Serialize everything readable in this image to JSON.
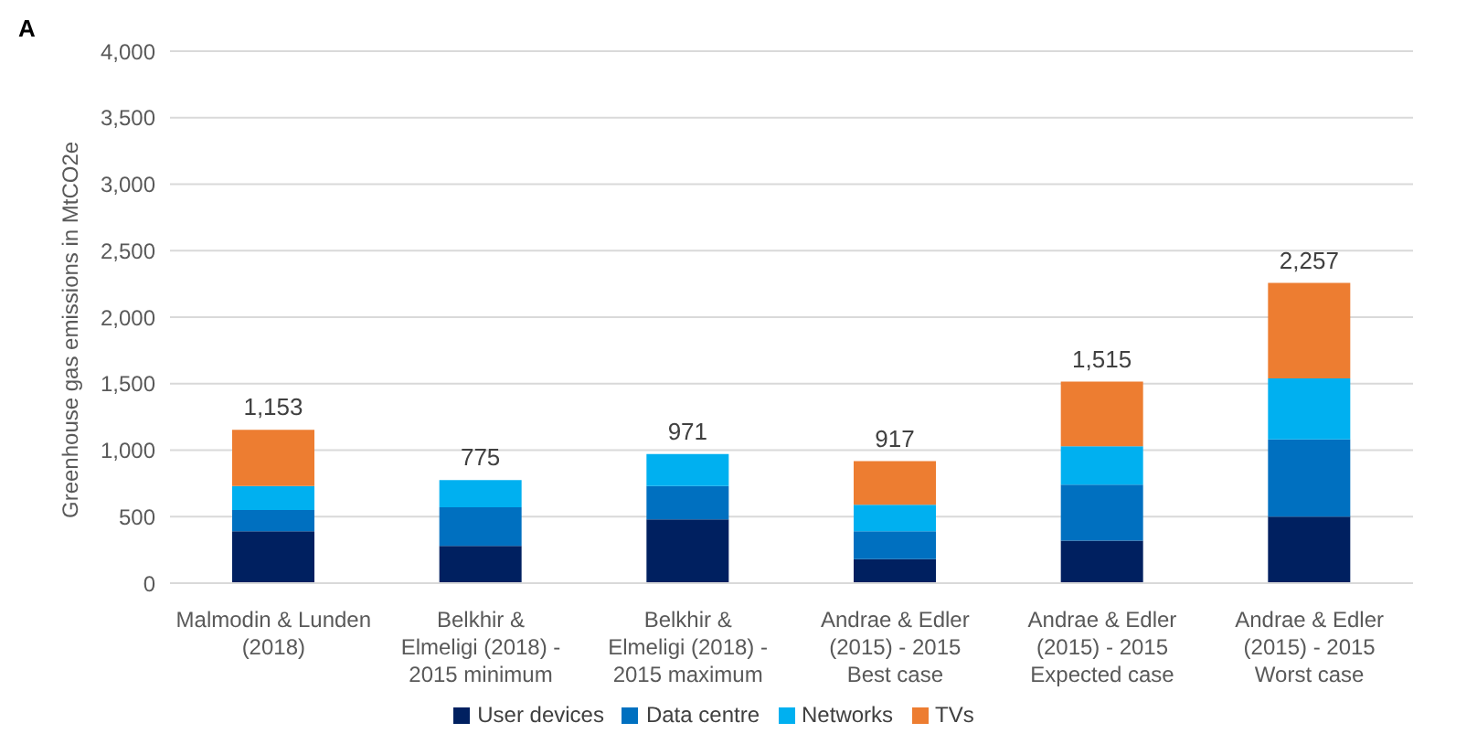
{
  "chart_data": {
    "type": "bar",
    "title": "A",
    "ylabel": "Greenhouse gas emissions in MtCO2e",
    "categories": [
      "Malmodin & Lunden (2018)",
      "Belkhir & Elmeligi (2018) - 2015 minimum",
      "Belkhir & Elmeligi (2018) - 2015 maximum",
      "Andrae & Edler (2015) - 2015 Best case",
      "Andrae & Edler (2015) - 2015 Expected case",
      "Andrae & Edler (2015) - 2015 Worst case"
    ],
    "series": [
      {
        "name": "User devices",
        "color": "#002060",
        "values": [
          390,
          280,
          480,
          180,
          320,
          500
        ]
      },
      {
        "name": "Data centre",
        "color": "#0070c0",
        "values": [
          160,
          290,
          250,
          210,
          420,
          580
        ]
      },
      {
        "name": "Networks",
        "color": "#00b0f0",
        "values": [
          180,
          205,
          240,
          200,
          290,
          460
        ]
      },
      {
        "name": "TVs",
        "color": "#ed7d31",
        "values": [
          423,
          0,
          0,
          327,
          485,
          717
        ]
      }
    ],
    "stacked": true,
    "totals": [
      "1,153",
      "775",
      "971",
      "917",
      "1,515",
      "2,257"
    ],
    "ylim": [
      0,
      4000
    ],
    "yticks": [
      {
        "value": 0,
        "label": "0"
      },
      {
        "value": 500,
        "label": "500"
      },
      {
        "value": 1000,
        "label": "1,000"
      },
      {
        "value": 1500,
        "label": "1,500"
      },
      {
        "value": 2000,
        "label": "2,000"
      },
      {
        "value": 2500,
        "label": "2,500"
      },
      {
        "value": 3000,
        "label": "3,000"
      },
      {
        "value": 3500,
        "label": "3,500"
      },
      {
        "value": 4000,
        "label": "4,000"
      }
    ],
    "grid": "y",
    "legend": "bottom"
  }
}
